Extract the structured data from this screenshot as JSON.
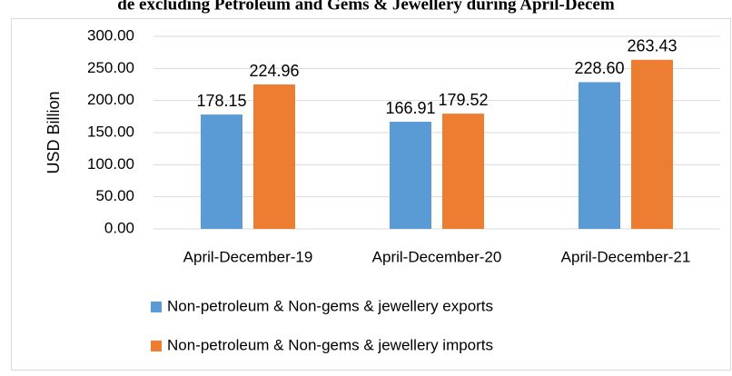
{
  "chart_data": {
    "type": "bar",
    "title": "de excluding Petroleum and Gems & Jewellery during April-Decem",
    "ylabel": "USD Billion",
    "categories": [
      "April-December-19",
      "April-December-20",
      "April-December-21"
    ],
    "series": [
      {
        "name": "Non-petroleum & Non-gems & jewellery exports",
        "color": "#5b9bd5",
        "values": [
          178.15,
          166.91,
          228.6
        ],
        "value_labels": [
          "178.15",
          "166.91",
          "228.60"
        ]
      },
      {
        "name": "Non-petroleum & Non-gems & jewellery imports",
        "color": "#ed7d31",
        "values": [
          224.96,
          179.52,
          263.43
        ],
        "value_labels": [
          "224.96",
          "179.52",
          "263.43"
        ]
      }
    ],
    "ylim": [
      0,
      300
    ],
    "yticks": [
      {
        "value": 0,
        "label": "0.00"
      },
      {
        "value": 50,
        "label": "50.00"
      },
      {
        "value": 100,
        "label": "100.00"
      },
      {
        "value": 150,
        "label": "150.00"
      },
      {
        "value": 200,
        "label": "200.00"
      },
      {
        "value": 250,
        "label": "250.00"
      },
      {
        "value": 300,
        "label": "300.00"
      }
    ],
    "grid": true,
    "legend": "bottom"
  }
}
